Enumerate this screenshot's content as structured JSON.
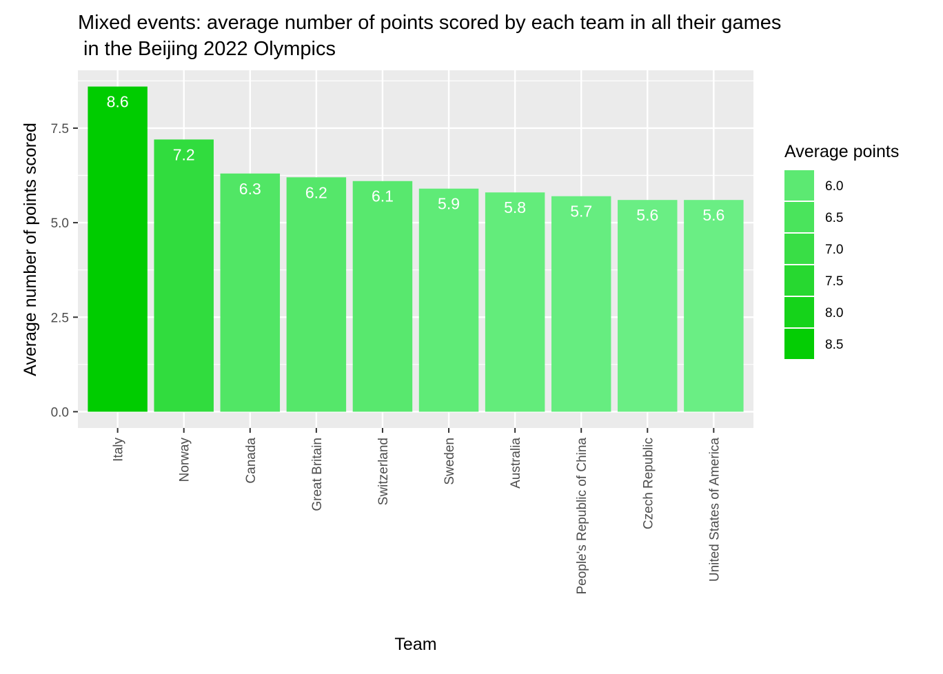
{
  "chart_data": {
    "type": "bar",
    "title_lines": [
      "Mixed events: average number of points scored by each team in all their games",
      " in the Beijing 2022 Olympics"
    ],
    "xlabel": "Team",
    "ylabel": "Average number of points scored",
    "categories": [
      "Italy",
      "Norway",
      "Canada",
      "Great Britain",
      "Switzerland",
      "Sweden",
      "Australia",
      "People's Republic of China",
      "Czech Republic",
      "United States of America"
    ],
    "values": [
      8.6,
      7.2,
      6.3,
      6.2,
      6.1,
      5.9,
      5.8,
      5.7,
      5.6,
      5.6
    ],
    "data_labels": [
      "8.6",
      "7.2",
      "6.3",
      "6.2",
      "6.1",
      "5.9",
      "5.8",
      "5.7",
      "5.6",
      "5.6"
    ],
    "ylim": [
      -0.43,
      9.03
    ],
    "yticks": [
      0,
      2.5,
      5,
      7.5
    ],
    "ytick_labels": [
      "0.0",
      "2.5",
      "5.0",
      "7.5"
    ],
    "grid": true,
    "legend": {
      "title": "Average points",
      "position": "right",
      "values": [
        6.0,
        6.5,
        7.0,
        7.5,
        8.0,
        8.5
      ],
      "labels": [
        "6.0",
        "6.5",
        "7.0",
        "7.5",
        "8.0",
        "8.5"
      ]
    },
    "color_scale": {
      "low_value": 5.6,
      "high_value": 8.6,
      "low_color": "#6aee84",
      "high_color": "#00cc00"
    },
    "colors": {
      "panel_background": "#ebebeb",
      "gridline": "#ffffff",
      "tick": "#333333"
    }
  }
}
